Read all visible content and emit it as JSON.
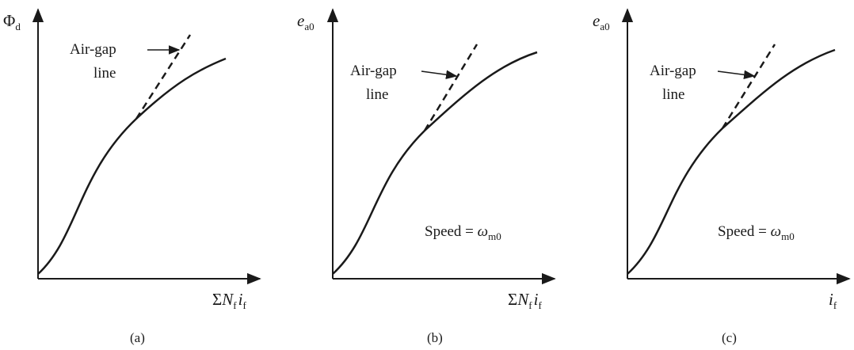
{
  "panels": [
    {
      "caption": "(a)",
      "y_label": {
        "main": "Φ",
        "sub": "d"
      },
      "x_label": {
        "sigma": "Σ",
        "n": "N",
        "n_sub": "f",
        "i": "i",
        "i_sub": "f"
      },
      "annotation_line1": "Air-gap",
      "annotation_line2": "line",
      "speed_label": null
    },
    {
      "caption": "(b)",
      "y_label": {
        "main": "e",
        "sub": "a0"
      },
      "x_label": {
        "sigma": "Σ",
        "n": "N",
        "n_sub": "f",
        "i": "i",
        "i_sub": "f"
      },
      "annotation_line1": "Air-gap",
      "annotation_line2": "line",
      "speed_label": {
        "prefix": "Speed = ",
        "omega": "ω",
        "sub": "m0"
      }
    },
    {
      "caption": "(c)",
      "y_label": {
        "main": "e",
        "sub": "a0"
      },
      "x_label": {
        "i": "i",
        "i_sub": "f"
      },
      "annotation_line1": "Air-gap",
      "annotation_line2": "line",
      "speed_label": {
        "prefix": "Speed = ",
        "omega": "ω",
        "sub": "m0"
      }
    }
  ],
  "colors": {
    "ink": "#1a1a1a",
    "background": "#ffffff"
  }
}
